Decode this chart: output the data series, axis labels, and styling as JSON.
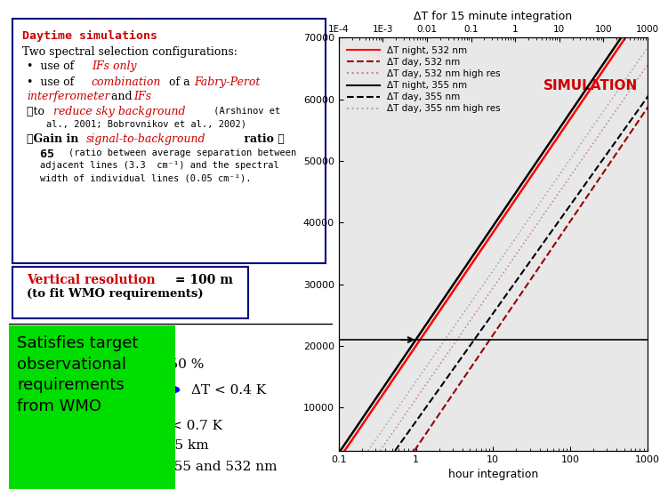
{
  "title": "ΔT for 15 minute integration",
  "xlabel_bottom": "hour integration",
  "bg_color": "#ffffff",
  "plot_bg": "#e8e8e8",
  "x_min": 0.1,
  "x_max": 1000,
  "y_min": 3000,
  "y_max": 70000,
  "yticks": [
    10000,
    20000,
    30000,
    40000,
    50000,
    60000,
    70000
  ],
  "ytick_labels": [
    "10000",
    "20000",
    "30000",
    "40000",
    "50000",
    "60000",
    "70000"
  ],
  "xticks_bottom": [
    0.1,
    1,
    10,
    100,
    1000
  ],
  "xticks_top_vals": [
    0.0001,
    0.001,
    0.01,
    0.1,
    1,
    10,
    100,
    1000
  ],
  "xticks_top_labels": [
    "1E-4",
    "1E-3",
    "0.01",
    "0.1",
    "1",
    "10",
    "100",
    "1000"
  ],
  "simulation_label": "SIMULATION",
  "simulation_color": "#cc0000",
  "left_box_border": "#000080",
  "green_box_color": "#00dd00",
  "night_line_y": 21000
}
